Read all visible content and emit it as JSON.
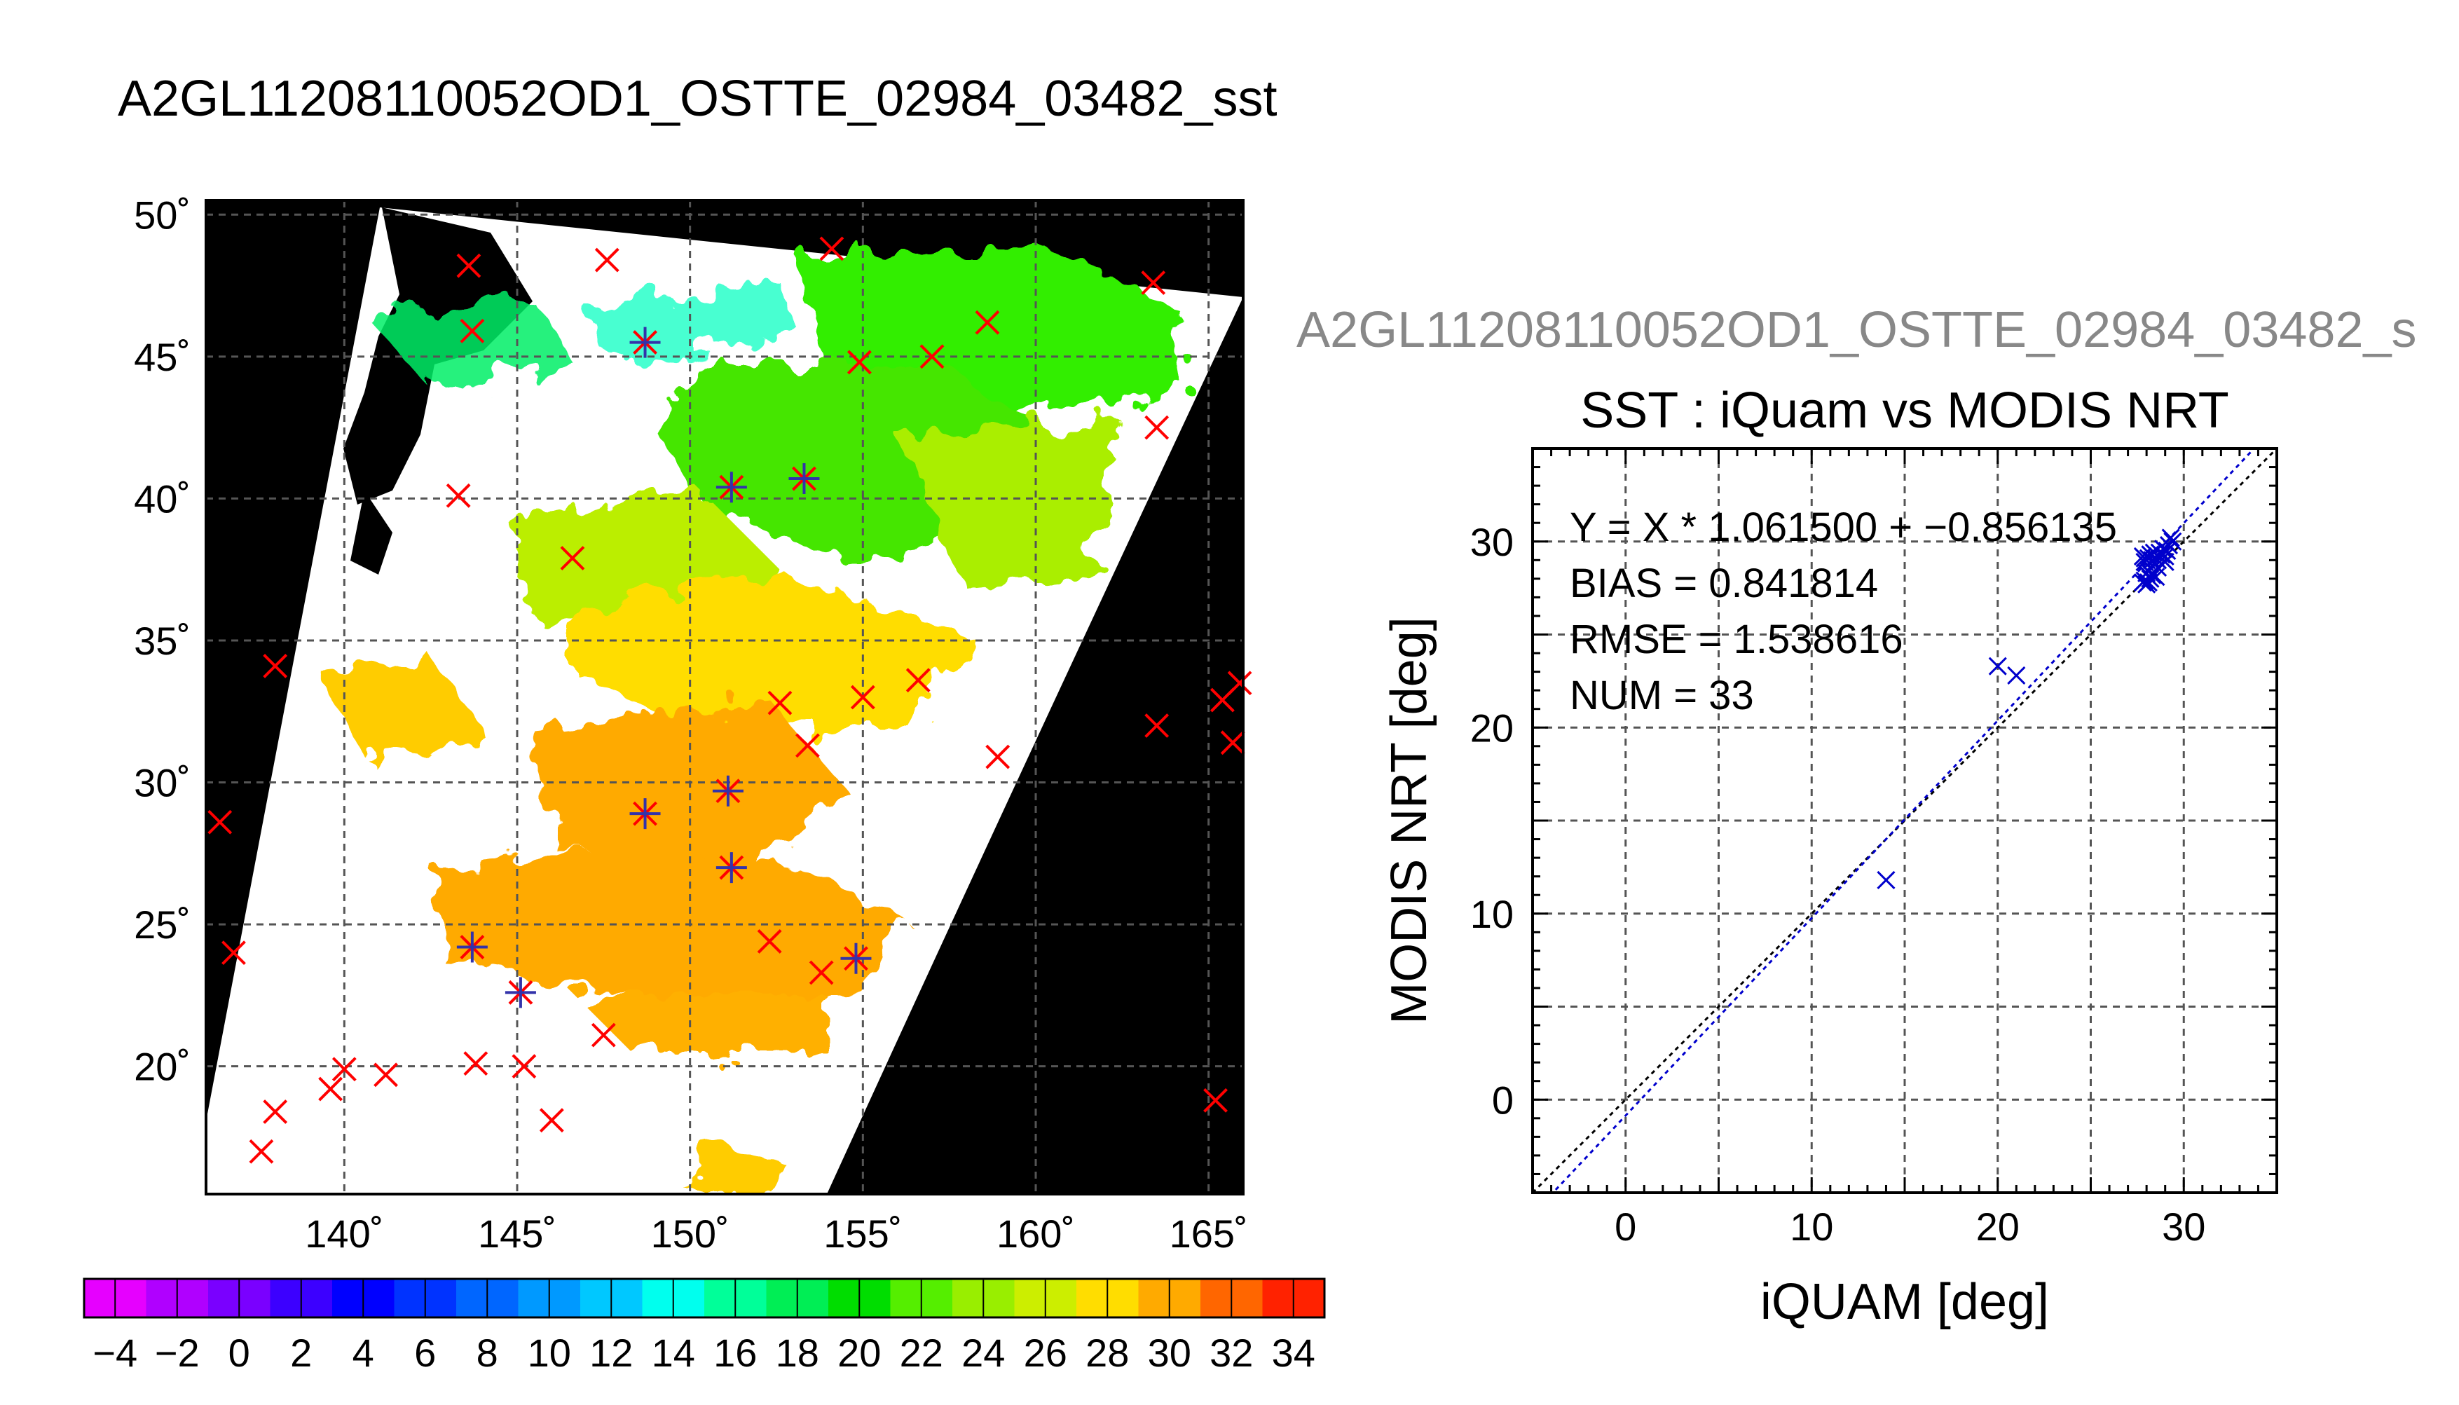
{
  "title": "A2GL11208110052OD1_OSTTE_02984_03482_sst",
  "map": {
    "lon_ticks": [
      "140˚",
      "145˚",
      "150˚",
      "155˚",
      "160˚",
      "165˚"
    ],
    "lat_ticks": [
      "50˚",
      "45˚",
      "40˚",
      "35˚",
      "30˚",
      "25˚",
      "20˚"
    ],
    "lon_range": [
      136,
      166
    ],
    "lat_range": [
      15.5,
      50.5
    ],
    "background_color": "#000000",
    "cloud_color": "#ffffff",
    "match_marker_color": "#ff0000",
    "valid_marker_color": "#3333aa",
    "red_markers": [
      [
        143.6,
        48.2
      ],
      [
        147.6,
        48.4
      ],
      [
        154.1,
        48.8
      ],
      [
        163.4,
        47.6
      ],
      [
        158.6,
        46.2
      ],
      [
        143.7,
        45.9
      ],
      [
        157.0,
        45.0
      ],
      [
        154.9,
        44.8
      ],
      [
        163.5,
        42.5
      ],
      [
        143.3,
        40.1
      ],
      [
        146.6,
        37.9
      ],
      [
        138.0,
        34.1
      ],
      [
        156.6,
        33.6
      ],
      [
        155.0,
        33.0
      ],
      [
        152.6,
        32.8
      ],
      [
        165.9,
        33.5
      ],
      [
        165.4,
        32.9
      ],
      [
        163.5,
        32.0
      ],
      [
        165.7,
        31.4
      ],
      [
        153.4,
        31.3
      ],
      [
        158.9,
        30.9
      ],
      [
        136.4,
        28.6
      ],
      [
        153.8,
        23.3
      ],
      [
        152.3,
        24.4
      ],
      [
        136.8,
        24.0
      ],
      [
        147.5,
        21.1
      ],
      [
        143.8,
        20.1
      ],
      [
        145.2,
        20.0
      ],
      [
        140.0,
        19.9
      ],
      [
        141.2,
        19.7
      ],
      [
        139.6,
        19.2
      ],
      [
        138.0,
        18.4
      ],
      [
        146.0,
        18.1
      ],
      [
        137.6,
        17.0
      ],
      [
        165.2,
        18.8
      ]
    ],
    "star_markers": [
      [
        148.7,
        45.5
      ],
      [
        151.2,
        40.4
      ],
      [
        153.3,
        40.7
      ],
      [
        148.7,
        28.9
      ],
      [
        151.2,
        27.0
      ],
      [
        151.1,
        29.7
      ],
      [
        143.7,
        24.2
      ],
      [
        145.1,
        22.6
      ],
      [
        154.8,
        23.8
      ]
    ]
  },
  "colorbar": {
    "labels": [
      "−4",
      "−2",
      "0",
      "2",
      "4",
      "6",
      "8",
      "10",
      "12",
      "14",
      "16",
      "18",
      "20",
      "22",
      "24",
      "26",
      "28",
      "30",
      "32",
      "34"
    ],
    "values": [
      -4,
      -2,
      0,
      2,
      4,
      6,
      8,
      10,
      12,
      14,
      16,
      18,
      20,
      22,
      24,
      26,
      28,
      30,
      32,
      34
    ],
    "range": [
      -5,
      35
    ],
    "colors": [
      "#e600ff",
      "#b000ff",
      "#7a00ff",
      "#3c00ff",
      "#0000ff",
      "#0033ff",
      "#0066ff",
      "#0099ff",
      "#00c8ff",
      "#00ffee",
      "#00ff99",
      "#00ee55",
      "#00dd00",
      "#55ee00",
      "#99ee00",
      "#ccee00",
      "#ffdd00",
      "#ffaa00",
      "#ff6600",
      "#ff2200"
    ]
  },
  "second_title": "A2GL11208110052OD1_OSTTE_02984_03482_s",
  "chart_data": {
    "type": "scatter",
    "title": "SST : iQuam vs MODIS NRT",
    "xlabel": "iQUAM [deg]",
    "ylabel": "MODIS NRT [deg]",
    "xlim": [
      -5,
      35
    ],
    "ylim": [
      -5,
      35
    ],
    "xticks": [
      0,
      10,
      20,
      30
    ],
    "yticks": [
      0,
      10,
      20,
      30
    ],
    "grid": true,
    "annotations": [
      "Y = X * 1.061500 + −0.856135",
      "BIAS = 0.841814",
      "RMSE = 1.538616",
      "NUM = 33"
    ],
    "regression": {
      "slope": 1.0615,
      "intercept": -0.856135,
      "color": "#0000cc"
    },
    "identity_line_color": "#000000",
    "marker_color": "#0000cc",
    "points": [
      [
        14.0,
        11.8
      ],
      [
        20.0,
        23.3
      ],
      [
        21.0,
        22.8
      ],
      [
        27.8,
        29.2
      ],
      [
        28.0,
        29.0
      ],
      [
        28.2,
        29.3
      ],
      [
        27.9,
        27.9
      ],
      [
        28.0,
        27.7
      ],
      [
        28.1,
        27.8
      ],
      [
        28.3,
        28.2
      ],
      [
        28.5,
        29.1
      ],
      [
        28.6,
        29.0
      ],
      [
        29.0,
        29.2
      ],
      [
        29.2,
        29.8
      ],
      [
        29.3,
        30.2
      ],
      [
        27.9,
        28.9
      ],
      [
        28.1,
        29.1
      ],
      [
        28.4,
        28.8
      ],
      [
        28.7,
        29.4
      ],
      [
        28.9,
        29.6
      ],
      [
        29.1,
        29.5
      ],
      [
        28.0,
        28.3
      ],
      [
        28.2,
        28.0
      ],
      [
        27.8,
        27.8
      ],
      [
        28.3,
        29.0
      ],
      [
        28.6,
        28.6
      ],
      [
        29.0,
        28.9
      ],
      [
        28.8,
        29.3
      ],
      [
        29.4,
        30.0
      ],
      [
        28.4,
        29.4
      ],
      [
        27.9,
        29.1
      ],
      [
        28.1,
        28.4
      ],
      [
        28.5,
        28.1
      ]
    ]
  }
}
